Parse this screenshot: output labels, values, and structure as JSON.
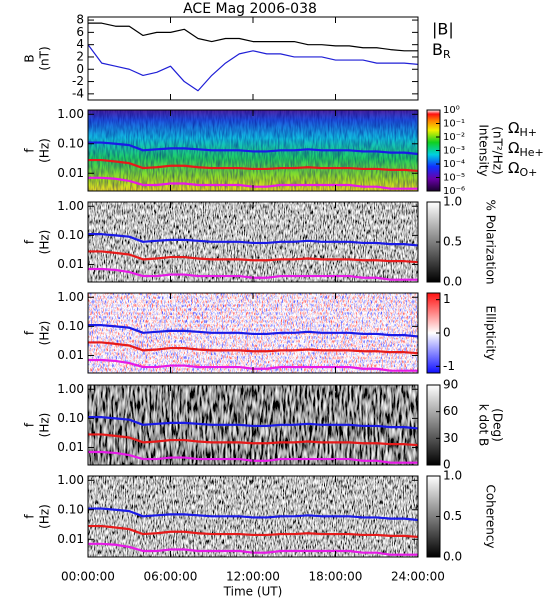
{
  "chart_data": [
    {
      "type": "line",
      "title": "ACE Mag 2006-038",
      "ylabel": [
        "B",
        "(nT)"
      ],
      "x": [
        0,
        1,
        2,
        3,
        4,
        5,
        6,
        7,
        8,
        9,
        10,
        11,
        12,
        13,
        14,
        15,
        16,
        17,
        18,
        19,
        20,
        21,
        22,
        23,
        24
      ],
      "xlim": [
        0,
        24
      ],
      "xticks": [
        0,
        6,
        12,
        18,
        24
      ],
      "ylim": [
        -5,
        8.5
      ],
      "yticks": [
        -4,
        -2,
        0,
        2,
        4,
        6,
        8
      ],
      "series": [
        {
          "name": "|B|",
          "color": "#000000",
          "values": [
            7.5,
            7.5,
            7,
            7,
            5.5,
            6,
            6,
            6.5,
            5,
            4.5,
            5,
            5,
            4.5,
            4.5,
            4.5,
            4.5,
            4,
            4,
            3.8,
            3.8,
            3.5,
            3.5,
            3.2,
            3,
            3
          ]
        },
        {
          "name": "BR",
          "color": "#1f1fd6",
          "values": [
            4,
            1,
            0.5,
            0,
            -1,
            -0.5,
            0.5,
            -2,
            -3.5,
            -1,
            1,
            2.5,
            3,
            2.5,
            2.5,
            2,
            2,
            2,
            1.5,
            1.5,
            1.5,
            1,
            1,
            1,
            0.8
          ]
        }
      ]
    },
    {
      "type": "spectrogram",
      "ylabel": [
        "f",
        "(Hz)"
      ],
      "ylog": true,
      "colormap": "rainbow",
      "x": [
        0,
        1,
        2,
        3,
        4,
        5,
        6,
        7,
        8,
        9,
        10,
        11,
        12,
        13,
        14,
        15,
        16,
        17,
        18,
        19,
        20,
        21,
        22,
        23,
        24
      ],
      "xlim": [
        0,
        24
      ],
      "xticks": [
        0,
        6,
        12,
        18,
        24
      ],
      "ylim": [
        0.0025,
        1.4
      ],
      "yticks": [
        {
          "value": 1,
          "label": "1.00"
        },
        {
          "value": 0.1,
          "label": "0.10"
        },
        {
          "value": 0.01,
          "label": "0.01"
        }
      ],
      "clabel": [
        "Intensity",
        "(nT²/Hz)"
      ],
      "clog": true,
      "clim": [
        1e-06,
        1
      ],
      "cticks": [
        {
          "value": 1,
          "label": "10⁰"
        },
        {
          "value": 0.1,
          "label": "10⁻¹"
        },
        {
          "value": 0.01,
          "label": "10⁻²"
        },
        {
          "value": 0.001,
          "label": "10⁻³"
        },
        {
          "value": 0.0001,
          "label": "10⁻⁴"
        },
        {
          "value": 1e-05,
          "label": "10⁻⁵"
        },
        {
          "value": 1e-06,
          "label": "10⁻⁶"
        }
      ],
      "series": [
        {
          "name": "ΩH+",
          "color": "#1a1ae6",
          "values": [
            0.11,
            0.11,
            0.1,
            0.09,
            0.06,
            0.065,
            0.07,
            0.07,
            0.065,
            0.06,
            0.06,
            0.06,
            0.055,
            0.055,
            0.06,
            0.06,
            0.065,
            0.06,
            0.06,
            0.06,
            0.055,
            0.055,
            0.05,
            0.05,
            0.045
          ]
        },
        {
          "name": "ΩHe+",
          "color": "#e61a1a",
          "values": [
            0.028,
            0.028,
            0.025,
            0.022,
            0.015,
            0.016,
            0.018,
            0.018,
            0.016,
            0.015,
            0.015,
            0.015,
            0.014,
            0.014,
            0.015,
            0.015,
            0.016,
            0.015,
            0.015,
            0.015,
            0.014,
            0.014,
            0.013,
            0.013,
            0.012
          ]
        },
        {
          "name": "ΩO+",
          "color": "#e61ae6",
          "values": [
            0.007,
            0.007,
            0.0065,
            0.0055,
            0.004,
            0.004,
            0.0045,
            0.0045,
            0.004,
            0.004,
            0.004,
            0.004,
            0.0035,
            0.0035,
            0.004,
            0.004,
            0.004,
            0.004,
            0.004,
            0.004,
            0.0035,
            0.0035,
            0.003,
            0.003,
            0.003
          ]
        }
      ]
    },
    {
      "type": "spectrogram",
      "ylabel": [
        "f",
        "(Hz)"
      ],
      "ylog": true,
      "colormap": "gray",
      "x": [
        0,
        1,
        2,
        3,
        4,
        5,
        6,
        7,
        8,
        9,
        10,
        11,
        12,
        13,
        14,
        15,
        16,
        17,
        18,
        19,
        20,
        21,
        22,
        23,
        24
      ],
      "xlim": [
        0,
        24
      ],
      "xticks": [
        0,
        6,
        12,
        18,
        24
      ],
      "ylim": [
        0.0025,
        1.4
      ],
      "yticks": [
        {
          "value": 1,
          "label": "1.00"
        },
        {
          "value": 0.1,
          "label": "0.10"
        },
        {
          "value": 0.01,
          "label": "0.01"
        }
      ],
      "clabel": [
        "% Polarization"
      ],
      "clim": [
        0,
        1
      ],
      "cticks": [
        {
          "value": 1,
          "label": "1.0"
        },
        0.5,
        {
          "value": 0,
          "label": "0.0"
        }
      ],
      "series": [
        {
          "color": "#1a1ae6",
          "values": [
            0.11,
            0.11,
            0.1,
            0.09,
            0.06,
            0.065,
            0.07,
            0.07,
            0.065,
            0.06,
            0.06,
            0.06,
            0.055,
            0.055,
            0.06,
            0.06,
            0.065,
            0.06,
            0.06,
            0.06,
            0.055,
            0.055,
            0.05,
            0.05,
            0.045
          ]
        },
        {
          "color": "#e61a1a",
          "values": [
            0.028,
            0.028,
            0.025,
            0.022,
            0.015,
            0.016,
            0.018,
            0.018,
            0.016,
            0.015,
            0.015,
            0.015,
            0.014,
            0.014,
            0.015,
            0.015,
            0.016,
            0.015,
            0.015,
            0.015,
            0.014,
            0.014,
            0.013,
            0.013,
            0.012
          ]
        },
        {
          "color": "#e61ae6",
          "values": [
            0.007,
            0.007,
            0.0065,
            0.0055,
            0.004,
            0.004,
            0.0045,
            0.0045,
            0.004,
            0.004,
            0.004,
            0.004,
            0.0035,
            0.0035,
            0.004,
            0.004,
            0.004,
            0.004,
            0.004,
            0.004,
            0.0035,
            0.0035,
            0.003,
            0.003,
            0.003
          ]
        }
      ]
    },
    {
      "type": "spectrogram",
      "ylabel": [
        "f",
        "(Hz)"
      ],
      "ylog": true,
      "colormap": "bwr",
      "x": [
        0,
        1,
        2,
        3,
        4,
        5,
        6,
        7,
        8,
        9,
        10,
        11,
        12,
        13,
        14,
        15,
        16,
        17,
        18,
        19,
        20,
        21,
        22,
        23,
        24
      ],
      "xlim": [
        0,
        24
      ],
      "xticks": [
        0,
        6,
        12,
        18,
        24
      ],
      "ylim": [
        0.0025,
        1.4
      ],
      "yticks": [
        {
          "value": 1,
          "label": "1.00"
        },
        {
          "value": 0.1,
          "label": "0.10"
        },
        {
          "value": 0.01,
          "label": "0.01"
        }
      ],
      "clabel": [
        "Ellipticity"
      ],
      "clim": [
        -1.2,
        1.2
      ],
      "cticks": [
        1,
        0,
        -1
      ],
      "series": [
        {
          "color": "#1a1ae6",
          "values": [
            0.11,
            0.11,
            0.1,
            0.09,
            0.06,
            0.065,
            0.07,
            0.07,
            0.065,
            0.06,
            0.06,
            0.06,
            0.055,
            0.055,
            0.06,
            0.06,
            0.065,
            0.06,
            0.06,
            0.06,
            0.055,
            0.055,
            0.05,
            0.05,
            0.045
          ]
        },
        {
          "color": "#e61a1a",
          "values": [
            0.028,
            0.028,
            0.025,
            0.022,
            0.015,
            0.016,
            0.018,
            0.018,
            0.016,
            0.015,
            0.015,
            0.015,
            0.014,
            0.014,
            0.015,
            0.015,
            0.016,
            0.015,
            0.015,
            0.015,
            0.014,
            0.014,
            0.013,
            0.013,
            0.012
          ]
        },
        {
          "color": "#e61ae6",
          "values": [
            0.007,
            0.007,
            0.0065,
            0.0055,
            0.004,
            0.004,
            0.0045,
            0.0045,
            0.004,
            0.004,
            0.004,
            0.004,
            0.0035,
            0.0035,
            0.004,
            0.004,
            0.004,
            0.004,
            0.004,
            0.004,
            0.0035,
            0.0035,
            0.003,
            0.003,
            0.003
          ]
        }
      ]
    },
    {
      "type": "spectrogram",
      "ylabel": [
        "f",
        "(Hz)"
      ],
      "ylog": true,
      "colormap": "gray",
      "dark": true,
      "x": [
        0,
        1,
        2,
        3,
        4,
        5,
        6,
        7,
        8,
        9,
        10,
        11,
        12,
        13,
        14,
        15,
        16,
        17,
        18,
        19,
        20,
        21,
        22,
        23,
        24
      ],
      "xlim": [
        0,
        24
      ],
      "xticks": [
        0,
        6,
        12,
        18,
        24
      ],
      "ylim": [
        0.0025,
        1.4
      ],
      "yticks": [
        {
          "value": 1,
          "label": "1.00"
        },
        {
          "value": 0.1,
          "label": "0.10"
        },
        {
          "value": 0.01,
          "label": "0.01"
        }
      ],
      "clabel": [
        "k dot B",
        "(Deg)"
      ],
      "clim": [
        0,
        90
      ],
      "cticks": [
        90,
        60,
        30,
        0
      ],
      "series": [
        {
          "color": "#1a1ae6",
          "values": [
            0.11,
            0.11,
            0.1,
            0.09,
            0.06,
            0.065,
            0.07,
            0.07,
            0.065,
            0.06,
            0.06,
            0.06,
            0.055,
            0.055,
            0.06,
            0.06,
            0.065,
            0.06,
            0.06,
            0.06,
            0.055,
            0.055,
            0.05,
            0.05,
            0.045
          ]
        },
        {
          "color": "#e61a1a",
          "values": [
            0.028,
            0.028,
            0.025,
            0.022,
            0.015,
            0.016,
            0.018,
            0.018,
            0.016,
            0.015,
            0.015,
            0.015,
            0.014,
            0.014,
            0.015,
            0.015,
            0.016,
            0.015,
            0.015,
            0.015,
            0.014,
            0.014,
            0.013,
            0.013,
            0.012
          ]
        },
        {
          "color": "#e61ae6",
          "values": [
            0.007,
            0.007,
            0.0065,
            0.0055,
            0.004,
            0.004,
            0.0045,
            0.0045,
            0.004,
            0.004,
            0.004,
            0.004,
            0.0035,
            0.0035,
            0.004,
            0.004,
            0.004,
            0.004,
            0.004,
            0.004,
            0.0035,
            0.0035,
            0.003,
            0.003,
            0.003
          ]
        }
      ]
    },
    {
      "type": "spectrogram",
      "ylabel": [
        "f",
        "(Hz)"
      ],
      "ylog": true,
      "colormap": "gray",
      "x": [
        0,
        1,
        2,
        3,
        4,
        5,
        6,
        7,
        8,
        9,
        10,
        11,
        12,
        13,
        14,
        15,
        16,
        17,
        18,
        19,
        20,
        21,
        22,
        23,
        24
      ],
      "xlim": [
        0,
        24
      ],
      "xticks": [
        {
          "value": 0,
          "label": "00:00:00"
        },
        {
          "value": 6,
          "label": "06:00:00"
        },
        {
          "value": 12,
          "label": "12:00:00"
        },
        {
          "value": 18,
          "label": "18:00:00"
        },
        {
          "value": 24,
          "label": "24:00:00"
        }
      ],
      "xlabel": "Time (UT)",
      "ylim": [
        0.0025,
        1.4
      ],
      "yticks": [
        {
          "value": 1,
          "label": "1.00"
        },
        {
          "value": 0.1,
          "label": "0.10"
        },
        {
          "value": 0.01,
          "label": "0.01"
        }
      ],
      "clabel": [
        "Coherency"
      ],
      "clim": [
        0,
        1
      ],
      "cticks": [
        {
          "value": 1,
          "label": "1.0"
        },
        0.5,
        {
          "value": 0,
          "label": "0.0"
        }
      ],
      "series": [
        {
          "color": "#1a1ae6",
          "values": [
            0.11,
            0.11,
            0.1,
            0.09,
            0.06,
            0.065,
            0.07,
            0.07,
            0.065,
            0.06,
            0.06,
            0.06,
            0.055,
            0.055,
            0.06,
            0.06,
            0.065,
            0.06,
            0.06,
            0.06,
            0.055,
            0.055,
            0.05,
            0.05,
            0.045
          ]
        },
        {
          "color": "#e61a1a",
          "values": [
            0.028,
            0.028,
            0.025,
            0.022,
            0.015,
            0.016,
            0.018,
            0.018,
            0.016,
            0.015,
            0.015,
            0.015,
            0.014,
            0.014,
            0.015,
            0.015,
            0.016,
            0.015,
            0.015,
            0.015,
            0.014,
            0.014,
            0.013,
            0.013,
            0.012
          ]
        },
        {
          "color": "#e61ae6",
          "values": [
            0.007,
            0.007,
            0.0065,
            0.0055,
            0.004,
            0.004,
            0.0045,
            0.0045,
            0.004,
            0.004,
            0.004,
            0.004,
            0.0035,
            0.0035,
            0.004,
            0.004,
            0.004,
            0.004,
            0.004,
            0.004,
            0.0035,
            0.0035,
            0.003,
            0.003,
            0.003
          ]
        }
      ]
    }
  ]
}
